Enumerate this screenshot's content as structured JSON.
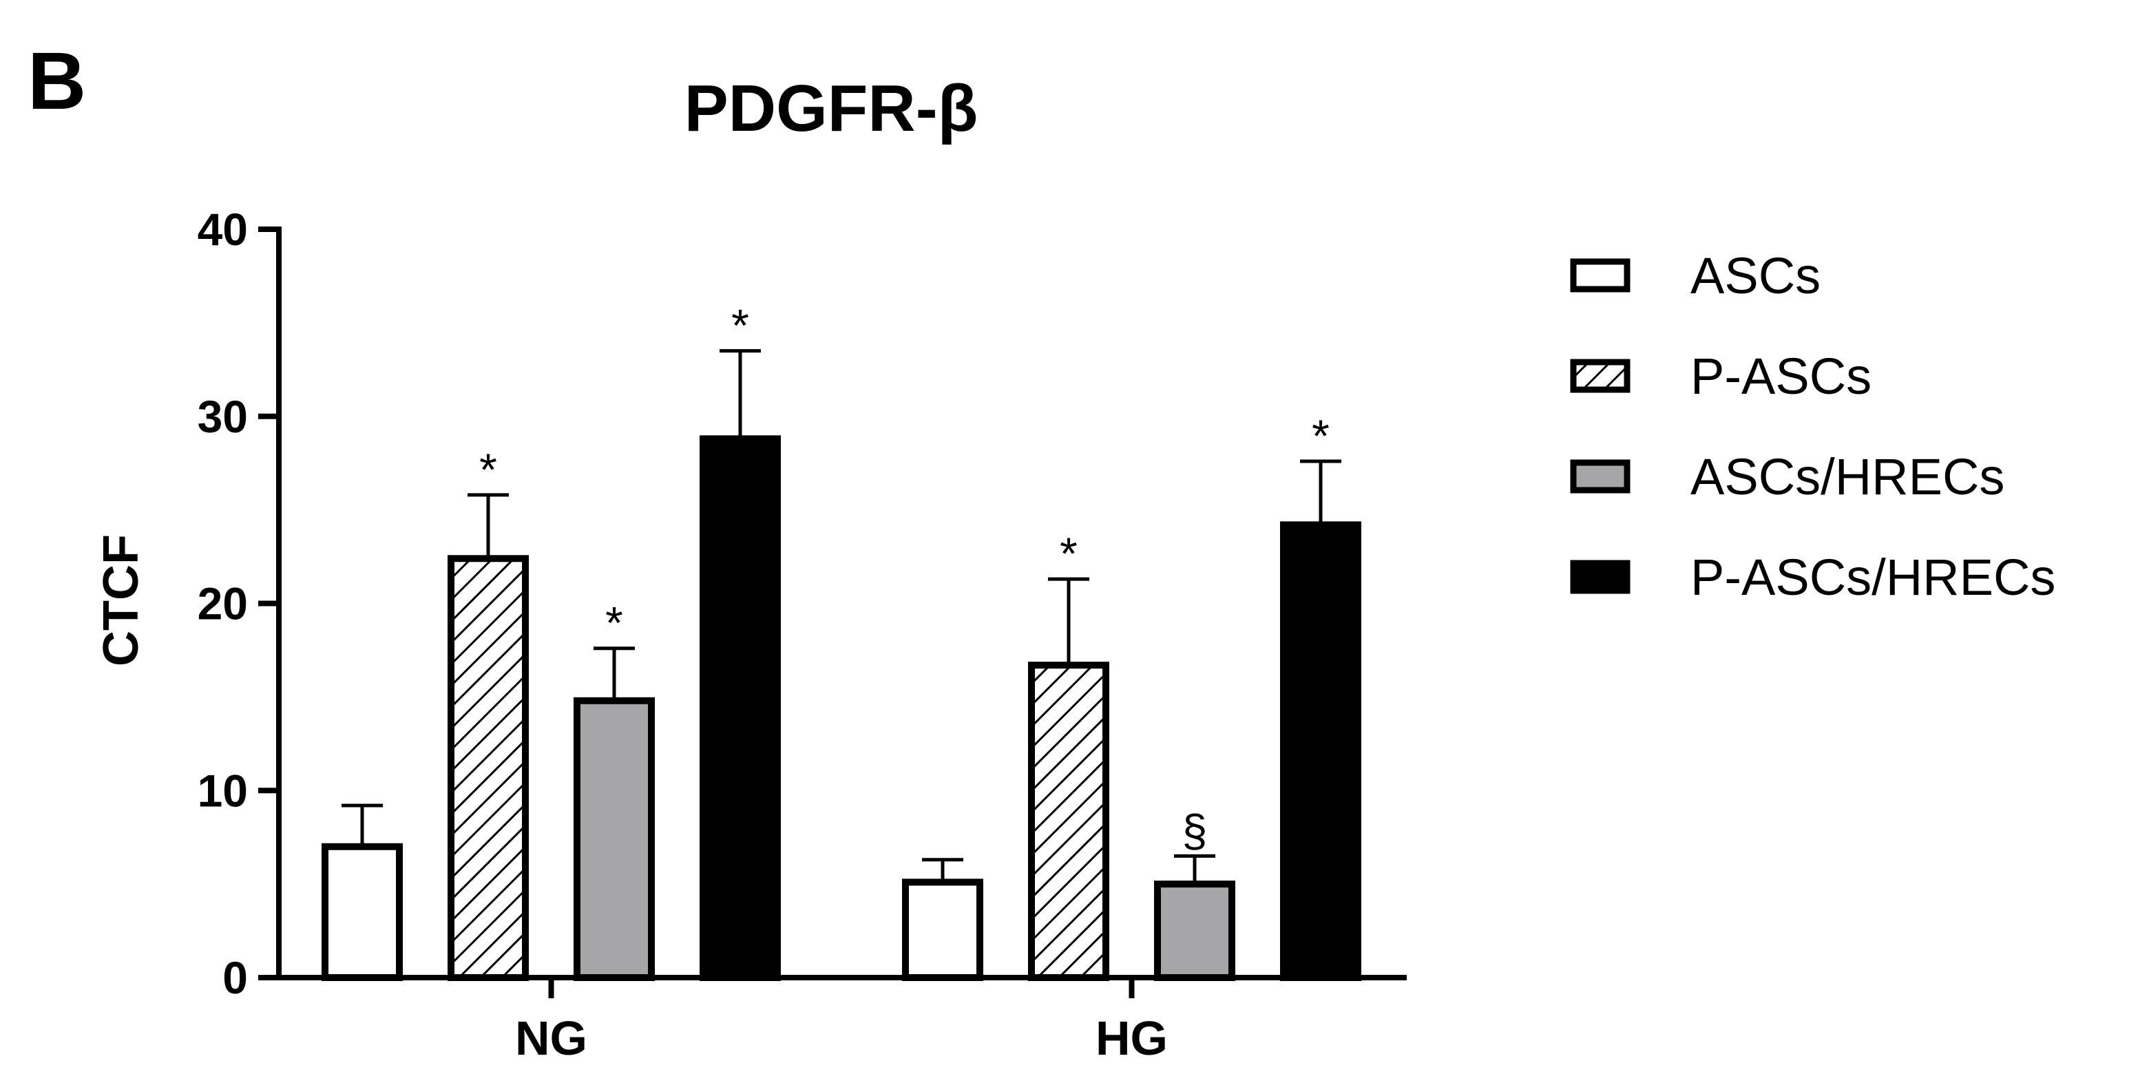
{
  "panel_label": "B",
  "chart_data": {
    "type": "bar",
    "title": "PDGFR-β",
    "xlabel": "",
    "ylabel": "CTCF",
    "ylim": [
      0,
      40
    ],
    "yticks": [
      0,
      10,
      20,
      30,
      40
    ],
    "categories": [
      "NG",
      "HG"
    ],
    "grid": false,
    "legend_position": "right",
    "series": [
      {
        "name": "ASCs",
        "fill": "#ffffff",
        "pattern": "none",
        "values": [
          7.0,
          5.1
        ],
        "error": [
          2.2,
          1.2
        ],
        "annotations": [
          "",
          ""
        ]
      },
      {
        "name": "P-ASCs",
        "fill": "#ffffff",
        "pattern": "diagonal-hatch",
        "values": [
          22.4,
          16.7
        ],
        "error": [
          3.4,
          4.6
        ],
        "annotations": [
          "*",
          "*"
        ]
      },
      {
        "name": "ASCs/HRECs",
        "fill": "#a6a6a8",
        "pattern": "none",
        "values": [
          14.8,
          5.0
        ],
        "error": [
          2.8,
          1.5
        ],
        "annotations": [
          "*",
          "§"
        ]
      },
      {
        "name": "P-ASCs/HRECs",
        "fill": "#000000",
        "pattern": "none",
        "values": [
          28.8,
          24.2
        ],
        "error": [
          4.7,
          3.4
        ],
        "annotations": [
          "*",
          "*"
        ]
      }
    ]
  }
}
